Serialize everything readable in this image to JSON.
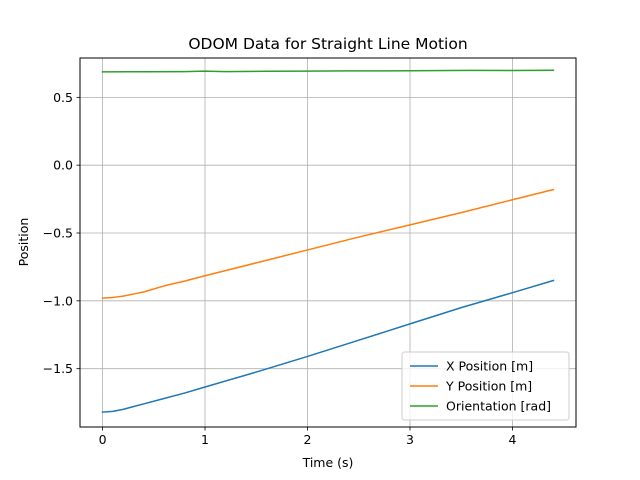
{
  "chart_data": {
    "type": "line",
    "title": "ODOM Data for Straight Line Motion",
    "xlabel": "Time (s)",
    "ylabel": "Position",
    "xlim": [
      -0.22,
      4.62
    ],
    "ylim": [
      -1.93,
      0.79
    ],
    "xticks": [
      0,
      1,
      2,
      3,
      4
    ],
    "yticks": [
      -1.5,
      -1.0,
      -0.5,
      0.0,
      0.5
    ],
    "ytick_labels": [
      "−1.5",
      "−1.0",
      "−0.5",
      "0.0",
      "0.5"
    ],
    "grid": true,
    "legend_position": "bottom-right",
    "series": [
      {
        "name": "X Position [m]",
        "color": "#1f77b4",
        "x": [
          0,
          0.1,
          0.2,
          0.3,
          0.4,
          0.6,
          0.8,
          1.0,
          1.5,
          2.0,
          2.5,
          3.0,
          3.5,
          4.0,
          4.4
        ],
        "y": [
          -1.82,
          -1.815,
          -1.8,
          -1.78,
          -1.76,
          -1.72,
          -1.68,
          -1.635,
          -1.525,
          -1.41,
          -1.29,
          -1.17,
          -1.05,
          -0.94,
          -0.85
        ]
      },
      {
        "name": "Y Position [m]",
        "color": "#ff7f0e",
        "x": [
          0,
          0.1,
          0.2,
          0.3,
          0.4,
          0.6,
          0.8,
          1.0,
          1.5,
          2.0,
          2.5,
          3.0,
          3.5,
          4.0,
          4.4
        ],
        "y": [
          -0.98,
          -0.975,
          -0.965,
          -0.95,
          -0.935,
          -0.89,
          -0.855,
          -0.815,
          -0.72,
          -0.625,
          -0.53,
          -0.44,
          -0.35,
          -0.255,
          -0.18
        ]
      },
      {
        "name": "Orientation [rad]",
        "color": "#2ca02c",
        "x": [
          0,
          0.4,
          0.8,
          1.0,
          1.2,
          1.6,
          2.0,
          2.4,
          2.8,
          3.2,
          3.6,
          4.0,
          4.4
        ],
        "y": [
          0.688,
          0.689,
          0.69,
          0.693,
          0.69,
          0.692,
          0.693,
          0.695,
          0.695,
          0.697,
          0.699,
          0.698,
          0.7
        ]
      }
    ]
  }
}
